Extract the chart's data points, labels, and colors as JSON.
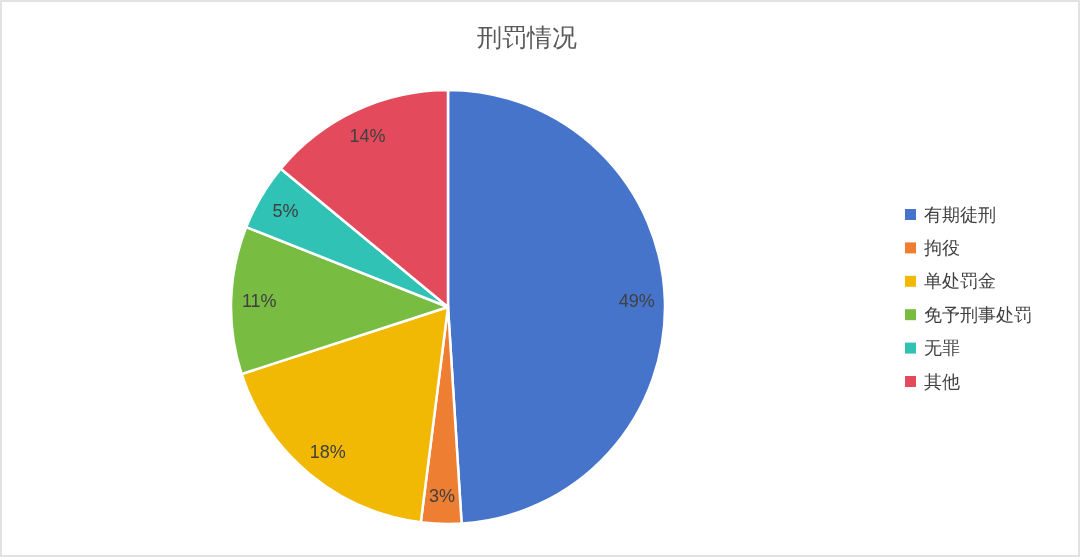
{
  "chart_data": {
    "type": "pie",
    "title": "刑罚情况",
    "categories": [
      "有期徒刑",
      "拘役",
      "单处罚金",
      "免予刑事处罚",
      "无罪",
      "其他"
    ],
    "values": [
      49,
      3,
      18,
      11,
      5,
      14
    ],
    "colors": [
      "#4674cb",
      "#ee7e32",
      "#f2b904",
      "#78bc42",
      "#30c2b5",
      "#e34b5d"
    ],
    "value_labels": [
      "49%",
      "3%",
      "18%",
      "11%",
      "5%",
      "14%"
    ],
    "legend": "right"
  }
}
